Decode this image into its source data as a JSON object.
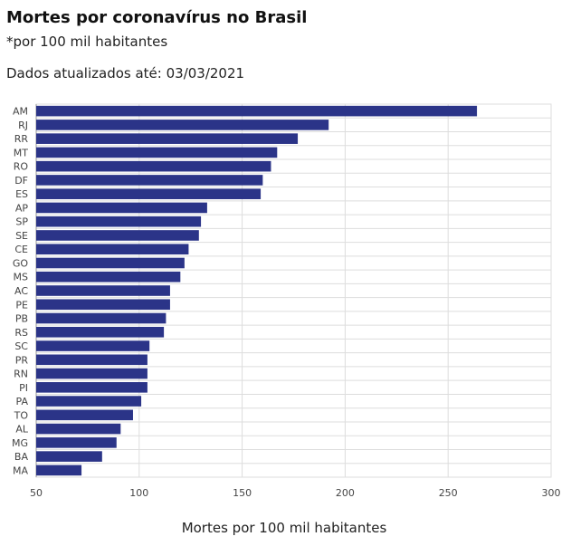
{
  "header": {
    "title": "Mortes por coronavírus no Brasil",
    "subtitle": "*por 100 mil habitantes",
    "updated": "Dados atualizados até: 03/03/2021"
  },
  "colors": {
    "bar": "#2b3488",
    "grid": "#dddddd",
    "axis": "#999999"
  },
  "chart_data": {
    "type": "bar",
    "orientation": "horizontal",
    "categories": [
      "AM",
      "RJ",
      "RR",
      "MT",
      "RO",
      "DF",
      "ES",
      "AP",
      "SP",
      "SE",
      "CE",
      "GO",
      "MS",
      "AC",
      "PE",
      "PB",
      "RS",
      "SC",
      "PR",
      "RN",
      "PI",
      "PA",
      "TO",
      "AL",
      "MG",
      "BA",
      "MA"
    ],
    "values": [
      264,
      192,
      177,
      167,
      164,
      160,
      159,
      133,
      130,
      129,
      124,
      122,
      120,
      115,
      115,
      113,
      112,
      105,
      104,
      104,
      104,
      101,
      97,
      91,
      89,
      82,
      72
    ],
    "xlabel": "Mortes por 100 mil habitantes",
    "ylabel": "",
    "xlim": [
      50,
      300
    ],
    "xticks": [
      50,
      100,
      150,
      200,
      250,
      300
    ],
    "grid": true
  }
}
